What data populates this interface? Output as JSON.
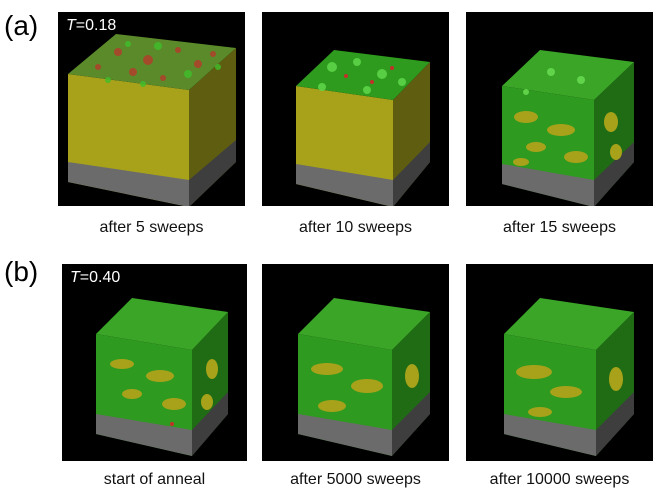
{
  "panel_a": {
    "label": "(a)",
    "temp_symbol": "T",
    "temp_value": "=0.18",
    "captions": [
      "after 5 sweeps",
      "after 10 sweeps",
      "after 15 sweeps"
    ]
  },
  "panel_b": {
    "label": "(b)",
    "temp_symbol": "T",
    "temp_value": "=0.40",
    "captions": [
      "start of anneal",
      "after 5000 sweeps",
      "after 10000 sweeps"
    ]
  },
  "colors": {
    "background": "#000000",
    "film_yellow": "#a9a51a",
    "domain_green": "#2fa61f",
    "red_spots": "#c2302a",
    "substrate_gray": "#6b6b6b"
  }
}
